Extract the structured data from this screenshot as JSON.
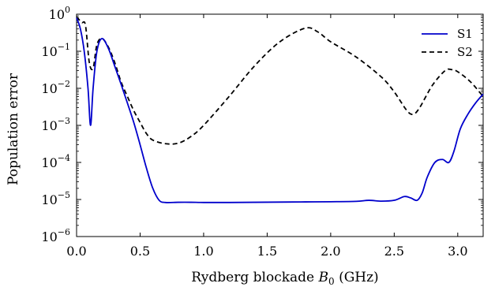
{
  "chart_data": {
    "type": "line",
    "xlabel": "Rydberg blockade",
    "xlabel_symbol": "B",
    "xlabel_subscript": "0",
    "xlabel_unit": "(GHz)",
    "ylabel": "Population error",
    "x_scale": "linear",
    "y_scale": "log",
    "xlim": [
      0,
      3.2
    ],
    "ylim": [
      1e-06,
      1
    ],
    "x_ticks": [
      {
        "value": 0.0,
        "label": "0.0"
      },
      {
        "value": 0.5,
        "label": "0.5"
      },
      {
        "value": 1.0,
        "label": "1.0"
      },
      {
        "value": 1.5,
        "label": "1.5"
      },
      {
        "value": 2.0,
        "label": "2.0"
      },
      {
        "value": 2.5,
        "label": "2.5"
      },
      {
        "value": 3.0,
        "label": "3.0"
      }
    ],
    "y_ticks": [
      {
        "value": 1,
        "base": "10",
        "exp": "0"
      },
      {
        "value": 0.1,
        "base": "10",
        "exp": "−1"
      },
      {
        "value": 0.01,
        "base": "10",
        "exp": "−2"
      },
      {
        "value": 0.001,
        "base": "10",
        "exp": "−3"
      },
      {
        "value": 0.0001,
        "base": "10",
        "exp": "−4"
      },
      {
        "value": 1e-05,
        "base": "10",
        "exp": "−5"
      },
      {
        "value": 1e-06,
        "base": "10",
        "exp": "−6"
      }
    ],
    "grid": false,
    "legend_position": "top-right",
    "series": [
      {
        "name": "S1",
        "color": "#0000cc",
        "dash": "solid",
        "points": [
          [
            0.0,
            0.8
          ],
          [
            0.03,
            0.4
          ],
          [
            0.06,
            0.1
          ],
          [
            0.09,
            0.01
          ],
          [
            0.11,
            0.001
          ],
          [
            0.13,
            0.01
          ],
          [
            0.16,
            0.1
          ],
          [
            0.2,
            0.22
          ],
          [
            0.25,
            0.12
          ],
          [
            0.3,
            0.04
          ],
          [
            0.35,
            0.013
          ],
          [
            0.4,
            0.004
          ],
          [
            0.45,
            0.0012
          ],
          [
            0.5,
            0.0003
          ],
          [
            0.55,
            7e-05
          ],
          [
            0.6,
            2e-05
          ],
          [
            0.65,
            9.5e-06
          ],
          [
            0.7,
            8.3e-06
          ],
          [
            0.8,
            8.4e-06
          ],
          [
            0.9,
            8.4e-06
          ],
          [
            1.0,
            8.3e-06
          ],
          [
            1.2,
            8.3e-06
          ],
          [
            1.4,
            8.4e-06
          ],
          [
            1.6,
            8.5e-06
          ],
          [
            1.8,
            8.6e-06
          ],
          [
            2.0,
            8.7e-06
          ],
          [
            2.2,
            8.9e-06
          ],
          [
            2.3,
            9.5e-06
          ],
          [
            2.4,
            9e-06
          ],
          [
            2.5,
            9.5e-06
          ],
          [
            2.58,
            1.2e-05
          ],
          [
            2.63,
            1.1e-05
          ],
          [
            2.68,
            9.5e-06
          ],
          [
            2.72,
            1.5e-05
          ],
          [
            2.76,
            4e-05
          ],
          [
            2.82,
            0.0001
          ],
          [
            2.88,
            0.00012
          ],
          [
            2.93,
            0.0001
          ],
          [
            2.97,
            0.0002
          ],
          [
            3.02,
            0.0008
          ],
          [
            3.08,
            0.002
          ],
          [
            3.14,
            0.004
          ],
          [
            3.2,
            0.007
          ]
        ]
      },
      {
        "name": "S2",
        "color": "#000000",
        "dash": "dashed",
        "points": [
          [
            0.0,
            0.85
          ],
          [
            0.04,
            0.6
          ],
          [
            0.07,
            0.5
          ],
          [
            0.1,
            0.05
          ],
          [
            0.13,
            0.035
          ],
          [
            0.16,
            0.15
          ],
          [
            0.2,
            0.22
          ],
          [
            0.25,
            0.13
          ],
          [
            0.3,
            0.05
          ],
          [
            0.35,
            0.015
          ],
          [
            0.4,
            0.006
          ],
          [
            0.45,
            0.0025
          ],
          [
            0.5,
            0.0012
          ],
          [
            0.55,
            0.0006
          ],
          [
            0.6,
            0.0004
          ],
          [
            0.7,
            0.00032
          ],
          [
            0.8,
            0.00033
          ],
          [
            0.9,
            0.0005
          ],
          [
            1.0,
            0.001
          ],
          [
            1.2,
            0.006
          ],
          [
            1.4,
            0.04
          ],
          [
            1.6,
            0.18
          ],
          [
            1.8,
            0.42
          ],
          [
            1.9,
            0.33
          ],
          [
            2.0,
            0.18
          ],
          [
            2.2,
            0.07
          ],
          [
            2.4,
            0.02
          ],
          [
            2.5,
            0.008
          ],
          [
            2.6,
            0.0025
          ],
          [
            2.65,
            0.002
          ],
          [
            2.7,
            0.003
          ],
          [
            2.8,
            0.012
          ],
          [
            2.9,
            0.03
          ],
          [
            2.95,
            0.032
          ],
          [
            3.0,
            0.028
          ],
          [
            3.1,
            0.015
          ],
          [
            3.2,
            0.006
          ]
        ]
      }
    ]
  }
}
